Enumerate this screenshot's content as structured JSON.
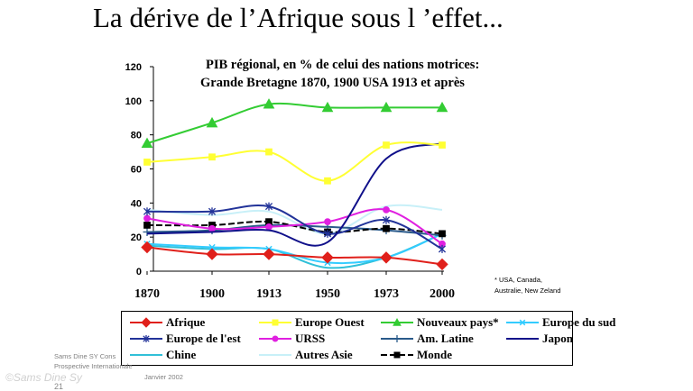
{
  "slide": {
    "title": "La dérive de l’Afrique sous l ’effet...",
    "footnote_lines": [
      "* USA, Canada,",
      "Australie, New Zeland"
    ],
    "source_lines": [
      "Sams Dine SY Cons",
      "Prospective Internationale",
      "Janvier 2002"
    ],
    "watermark": "©Sams Dine Sy",
    "page_number": "21"
  },
  "chart_data": {
    "type": "line",
    "title_lines": [
      "PIB régional, en % de celui des nations motrices:",
      "Grande Bretagne 1870, 1900  USA 1913 et après"
    ],
    "x": [
      1870,
      1900,
      1913,
      1950,
      1973,
      2000
    ],
    "x_tick_labels": [
      "1870",
      "1900",
      "1913",
      "1950",
      "1973",
      "2000"
    ],
    "y_ticks": [
      0,
      20,
      40,
      60,
      80,
      100,
      120
    ],
    "ylim": [
      0,
      120
    ],
    "grid": false,
    "legend_placement": "bottom",
    "series": [
      {
        "name": "Afrique",
        "color": "#e0201b",
        "marker": "diamond",
        "values": [
          14,
          10,
          10,
          8,
          8,
          4
        ]
      },
      {
        "name": "Europe Ouest",
        "color": "#ffff33",
        "marker": "square",
        "values": [
          64,
          67,
          70,
          53,
          74,
          74
        ]
      },
      {
        "name": "Nouveaux pays*",
        "color": "#33cc33",
        "marker": "triangle",
        "values": [
          75,
          87,
          98,
          96,
          96,
          96
        ]
      },
      {
        "name": "Europe du sud",
        "color": "#33ccff",
        "marker": "x",
        "values": [
          16,
          14,
          13,
          5,
          8,
          22
        ]
      },
      {
        "name": "Europe de l'est",
        "color": "#223399",
        "marker": "star",
        "values": [
          35,
          35,
          38,
          22,
          30,
          13
        ]
      },
      {
        "name": "URSS",
        "color": "#e020e0",
        "marker": "circle",
        "values": [
          31,
          25,
          26,
          29,
          36,
          16
        ]
      },
      {
        "name": "Am. Latine",
        "color": "#2a5a8a",
        "marker": "plus",
        "values": [
          23,
          24,
          27,
          26,
          24,
          21
        ]
      },
      {
        "name": "Japon",
        "color": "#10108a",
        "marker": "none",
        "values": [
          22,
          23,
          24,
          17,
          66,
          75
        ]
      },
      {
        "name": "Chine",
        "color": "#30c0d8",
        "marker": "none",
        "values": [
          15,
          13,
          13,
          2,
          8,
          22
        ]
      },
      {
        "name": "Autres Asie",
        "color": "#c8f0f8",
        "marker": "none",
        "values": [
          36,
          33,
          35,
          22,
          38,
          36
        ]
      },
      {
        "name": "Monde",
        "color": "#000000",
        "marker": "square",
        "values": [
          27,
          27,
          29,
          23,
          25,
          22
        ]
      }
    ]
  }
}
